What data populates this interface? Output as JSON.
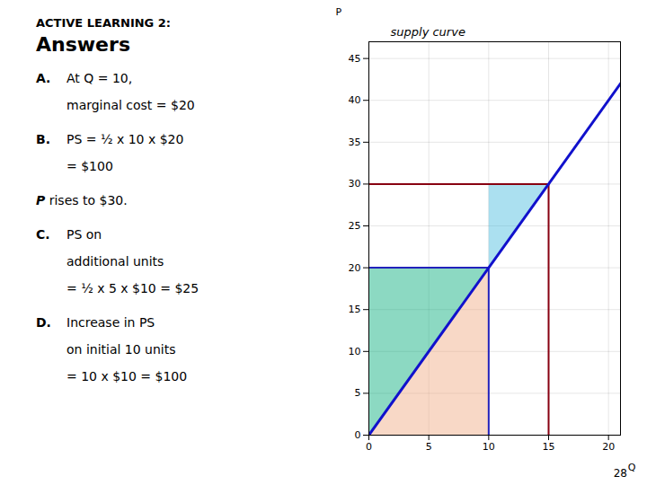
{
  "chart_data": {
    "type": "line",
    "x_label": "Q",
    "y_label": "P",
    "xlim": [
      0,
      21
    ],
    "ylim": [
      0,
      47
    ],
    "xticks": [
      0,
      5,
      10,
      15,
      20
    ],
    "yticks": [
      0,
      5,
      10,
      15,
      20,
      25,
      30,
      35,
      40,
      45
    ],
    "grid": true,
    "series": [
      {
        "color": "#1111cc",
        "x": [
          0,
          21
        ],
        "values": [
          0,
          42
        ]
      }
    ],
    "shapes": [
      {
        "color": "#f0a880",
        "points": [
          [
            0,
            0
          ],
          [
            10,
            0
          ],
          [
            10,
            20
          ]
        ]
      },
      {
        "color": "#00aa77",
        "points": [
          [
            0,
            0
          ],
          [
            10,
            20
          ],
          [
            0,
            20
          ]
        ]
      },
      {
        "color": "#44bbdd",
        "points": [
          [
            10,
            20
          ],
          [
            15,
            30
          ],
          [
            10,
            30
          ]
        ]
      }
    ],
    "segments": [
      {
        "x1": 0,
        "y1": 20,
        "x2": 10,
        "y2": 20,
        "color": "#2222bb"
      },
      {
        "x1": 0,
        "y1": 30,
        "x2": 15,
        "y2": 30,
        "color": "#880011"
      },
      {
        "x1": 10,
        "y1": 0,
        "x2": 10,
        "y2": 20,
        "color": "#2222bb"
      },
      {
        "x1": 15,
        "y1": 0,
        "x2": 15,
        "y2": 30,
        "color": "#880011"
      }
    ],
    "annotations": [
      "supply curve"
    ],
    "panel": {
      "heading": "ACTIVE LEARNING  2:",
      "title": "Answers",
      "rows": [
        {
          "label": "A.",
          "text": "At Q = 10,"
        },
        {
          "text": "marginal cost = $20"
        },
        {
          "label": "B.",
          "text": "PS = ½ x 10 x $20"
        },
        {
          "text": "= $100"
        },
        {
          "italic": "P",
          "text": "rises to $30."
        },
        {
          "label": "C.",
          "text": "PS on"
        },
        {
          "text": "additional units"
        },
        {
          "text": "= ½ x 5 x $10 = $25"
        },
        {
          "label": "D.",
          "text": "Increase in PS"
        },
        {
          "text": "on initial 10 units"
        },
        {
          "text": "= 10 x $10 = $100"
        }
      ]
    },
    "page_number": 28
  }
}
